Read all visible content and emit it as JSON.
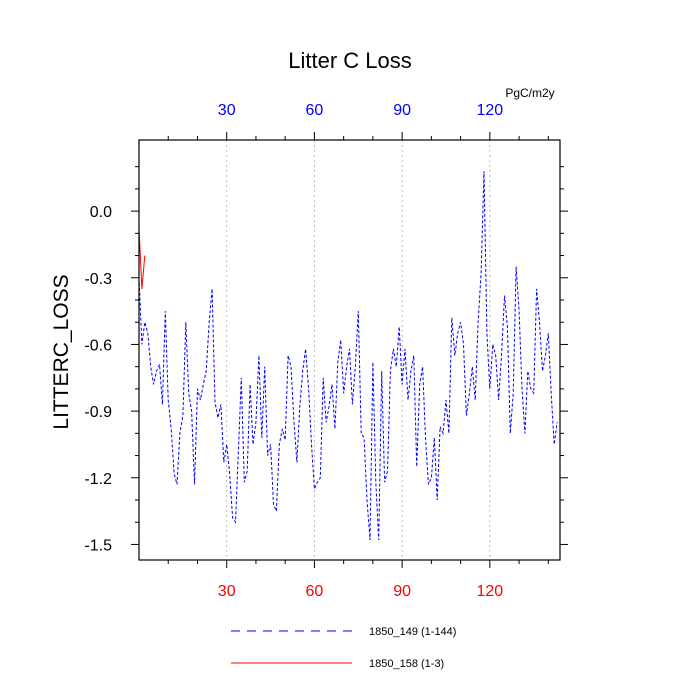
{
  "chart_data": {
    "type": "line",
    "title": "Litter C Loss",
    "units": "PgC/m2y",
    "ylabel": "LITTERC_LOSS",
    "xlabel": "",
    "xlim": [
      0,
      144
    ],
    "ylim": [
      -1.57,
      0.32
    ],
    "xticks": [
      30,
      60,
      90,
      120
    ],
    "xtick_labels": [
      "30",
      "60",
      "90",
      "120"
    ],
    "top_tick_color": "#0000ff",
    "bottom_tick_color": "#ff0000",
    "yticks": [
      0.0,
      -0.3,
      -0.6,
      -0.9,
      -1.2,
      -1.5
    ],
    "ytick_labels": [
      "0.0",
      "-0.3",
      "-0.6",
      "-0.9",
      "-1.2",
      "-1.5"
    ],
    "vertical_grid": true,
    "legend_position": "bottom",
    "series": [
      {
        "name": "1850_149 (1-144)",
        "color": "#0000ff",
        "style": "dashed",
        "x": [
          0,
          1,
          2,
          3,
          4,
          5,
          6,
          7,
          8,
          9,
          10,
          11,
          12,
          13,
          14,
          15,
          16,
          17,
          18,
          19,
          20,
          21,
          22,
          23,
          24,
          25,
          26,
          27,
          28,
          29,
          30,
          31,
          32,
          33,
          34,
          35,
          36,
          37,
          38,
          39,
          40,
          41,
          42,
          43,
          44,
          45,
          46,
          47,
          48,
          49,
          50,
          51,
          52,
          53,
          54,
          55,
          56,
          57,
          58,
          59,
          60,
          61,
          62,
          63,
          64,
          65,
          66,
          67,
          68,
          69,
          70,
          71,
          72,
          73,
          74,
          75,
          76,
          77,
          78,
          79,
          80,
          81,
          82,
          83,
          84,
          85,
          86,
          87,
          88,
          89,
          90,
          91,
          92,
          93,
          94,
          95,
          96,
          97,
          98,
          99,
          100,
          101,
          102,
          103,
          104,
          105,
          106,
          107,
          108,
          109,
          110,
          111,
          112,
          113,
          114,
          115,
          116,
          117,
          118,
          119,
          120,
          121,
          122,
          123,
          124,
          125,
          126,
          127,
          128,
          129,
          130,
          131,
          132,
          133,
          134,
          135,
          136,
          137,
          138,
          139,
          140,
          141,
          142,
          143
        ],
        "y": [
          -0.3,
          -0.6,
          -0.5,
          -0.55,
          -0.7,
          -0.78,
          -0.72,
          -0.69,
          -0.87,
          -0.45,
          -0.85,
          -0.98,
          -1.18,
          -1.23,
          -1.0,
          -0.92,
          -0.5,
          -0.82,
          -0.9,
          -1.23,
          -0.8,
          -0.85,
          -0.78,
          -0.72,
          -0.5,
          -0.35,
          -0.86,
          -0.93,
          -0.87,
          -1.13,
          -1.05,
          -1.18,
          -1.38,
          -1.4,
          -1.08,
          -0.75,
          -1.22,
          -1.17,
          -0.78,
          -1.05,
          -0.95,
          -0.65,
          -1.02,
          -0.7,
          -1.1,
          -1.05,
          -1.32,
          -1.35,
          -1.05,
          -0.98,
          -1.03,
          -0.65,
          -0.7,
          -0.95,
          -1.13,
          -0.88,
          -0.72,
          -0.62,
          -0.8,
          -1.05,
          -1.25,
          -1.22,
          -1.2,
          -0.75,
          -0.95,
          -0.88,
          -0.78,
          -0.98,
          -0.68,
          -0.58,
          -0.82,
          -0.7,
          -0.62,
          -0.87,
          -0.7,
          -0.45,
          -1.0,
          -1.02,
          -1.3,
          -1.48,
          -0.68,
          -1.22,
          -1.48,
          -0.72,
          -1.22,
          -1.17,
          -0.72,
          -0.62,
          -0.7,
          -0.52,
          -0.78,
          -0.62,
          -0.85,
          -0.72,
          -0.65,
          -1.15,
          -0.78,
          -0.7,
          -1.02,
          -1.23,
          -1.2,
          -1.02,
          -1.3,
          -0.97,
          -1.0,
          -0.85,
          -1.0,
          -0.48,
          -0.65,
          -0.55,
          -0.5,
          -0.6,
          -0.92,
          -0.82,
          -0.7,
          -0.85,
          -0.5,
          -0.28,
          0.18,
          -0.55,
          -0.8,
          -0.6,
          -0.65,
          -0.85,
          -0.65,
          -0.38,
          -0.52,
          -1.0,
          -0.82,
          -0.25,
          -0.45,
          -0.8,
          -1.0,
          -0.72,
          -0.8,
          -0.82,
          -0.35,
          -0.5,
          -0.72,
          -0.65,
          -0.55,
          -0.82,
          -1.05,
          -0.95
        ]
      },
      {
        "name": "1850_158 (1-3)",
        "color": "#ff0000",
        "style": "solid",
        "x": [
          0,
          1,
          2
        ],
        "y": [
          -0.08,
          -0.35,
          -0.2
        ]
      }
    ]
  }
}
